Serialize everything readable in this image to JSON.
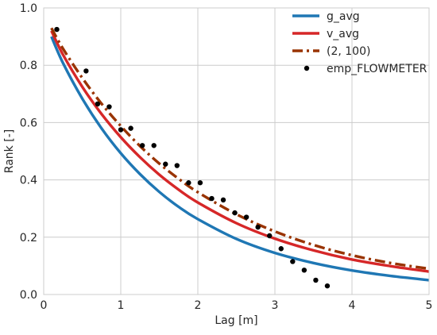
{
  "chart_data": {
    "type": "line",
    "xlabel": "Lag [m]",
    "ylabel": "Rank [-]",
    "xlim": [
      0,
      5
    ],
    "ylim": [
      0,
      1
    ],
    "xticks": [
      0,
      1,
      2,
      3,
      4,
      5
    ],
    "yticks": [
      0.0,
      0.2,
      0.4,
      0.6,
      0.8,
      1.0
    ],
    "xtick_labels": [
      "0",
      "1",
      "2",
      "3",
      "4",
      "5"
    ],
    "ytick_labels": [
      "0.0",
      "0.2",
      "0.4",
      "0.6",
      "0.8",
      "1.0"
    ],
    "grid": true,
    "legend_position": "top-right",
    "series": [
      {
        "name": "g_avg",
        "style": "solid",
        "color": "#1f77b4",
        "x": [
          0.1,
          0.25,
          0.5,
          0.75,
          1.0,
          1.25,
          1.5,
          1.75,
          2.0,
          2.5,
          3.0,
          3.5,
          4.0,
          4.5,
          5.0
        ],
        "y": [
          0.9,
          0.808,
          0.684,
          0.58,
          0.493,
          0.42,
          0.358,
          0.306,
          0.263,
          0.194,
          0.145,
          0.11,
          0.084,
          0.065,
          0.05
        ]
      },
      {
        "name": "v_avg",
        "style": "solid",
        "color": "#d62728",
        "x": [
          0.1,
          0.25,
          0.5,
          0.75,
          1.0,
          1.25,
          1.5,
          1.75,
          2.0,
          2.5,
          3.0,
          3.5,
          4.0,
          4.5,
          5.0
        ],
        "y": [
          0.92,
          0.837,
          0.725,
          0.63,
          0.549,
          0.479,
          0.418,
          0.366,
          0.321,
          0.249,
          0.195,
          0.154,
          0.122,
          0.099,
          0.08
        ]
      },
      {
        "name": "(2, 100)",
        "style": "dashdot",
        "color": "#993300",
        "x": [
          0.1,
          0.25,
          0.5,
          0.75,
          1.0,
          1.25,
          1.5,
          1.75,
          2.0,
          2.5,
          3.0,
          3.5,
          4.0,
          4.5,
          5.0
        ],
        "y": [
          0.93,
          0.858,
          0.756,
          0.666,
          0.588,
          0.518,
          0.457,
          0.404,
          0.357,
          0.28,
          0.22,
          0.173,
          0.137,
          0.11,
          0.09
        ]
      },
      {
        "name": "emp_FLOWMETER",
        "style": "markers",
        "color": "#000000",
        "x": [
          0.17,
          0.55,
          0.7,
          0.85,
          1.0,
          1.13,
          1.28,
          1.43,
          1.58,
          1.73,
          1.88,
          2.03,
          2.18,
          2.33,
          2.48,
          2.63,
          2.78,
          2.93,
          3.08,
          3.23,
          3.38,
          3.53,
          3.68
        ],
        "y": [
          0.925,
          0.78,
          0.665,
          0.655,
          0.575,
          0.58,
          0.52,
          0.52,
          0.455,
          0.45,
          0.39,
          0.39,
          0.335,
          0.33,
          0.285,
          0.27,
          0.235,
          0.205,
          0.16,
          0.115,
          0.085,
          0.05,
          0.03
        ]
      }
    ]
  }
}
